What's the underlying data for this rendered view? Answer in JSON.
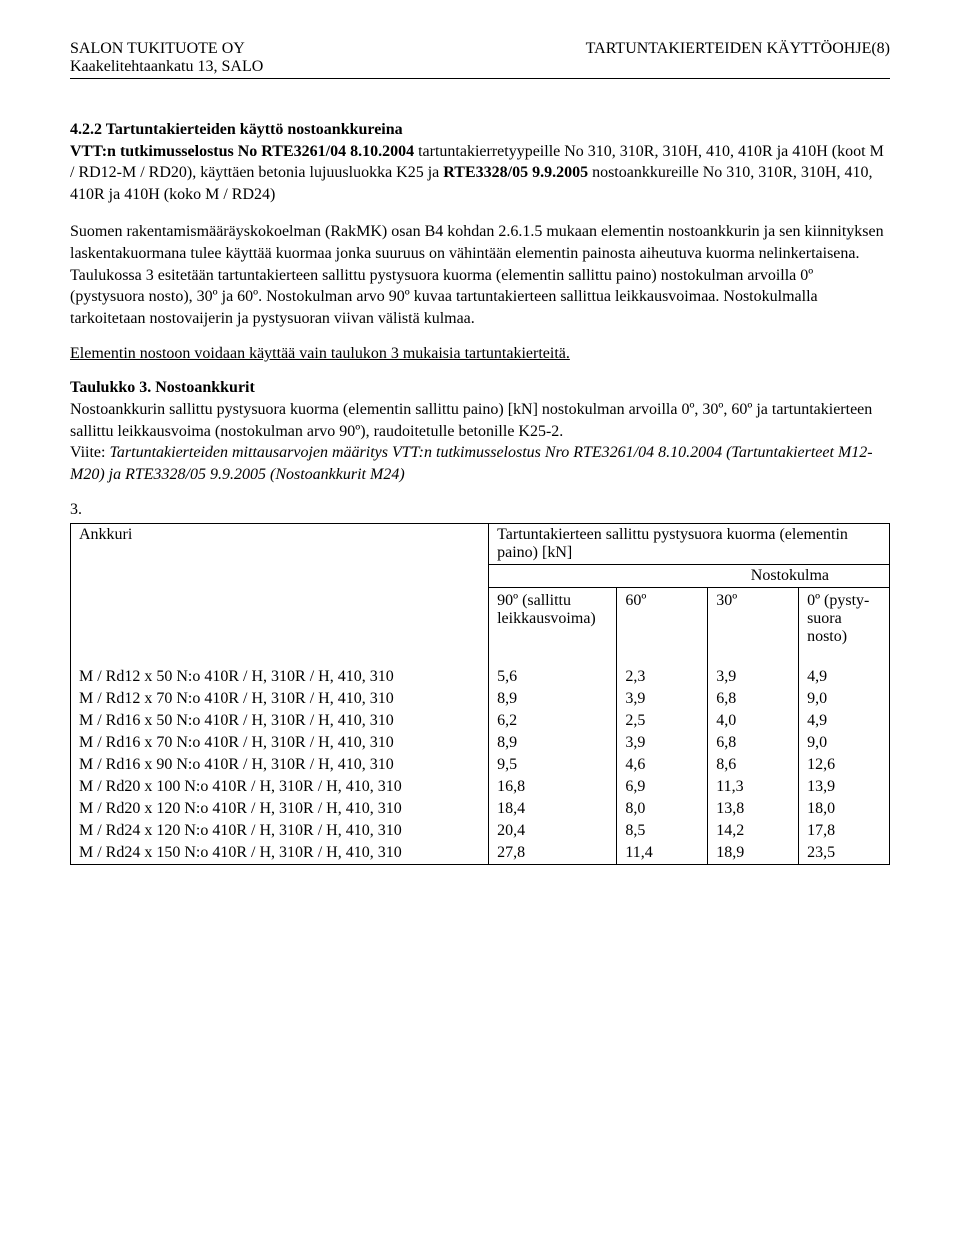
{
  "header": {
    "company": "SALON TUKITUOTE OY",
    "address": "Kaakelitehtaankatu 13,  SALO",
    "doc_title": "TARTUNTAKIERTEIDEN KÄYTTÖOHJE(8)"
  },
  "section": {
    "number_title": "4.2.2  Tartuntakierteiden käyttö nostoankkureina",
    "subtitle_prefix": "VTT:n tutkimusselostus No RTE3261/04 8.10.2004",
    "para1_a": " tartuntakierretyypeille No 310, 310R, 310H, 410, 410R ja 410H (koot M / RD12-M / RD20), käyttäen betonia lujuusluokka K25 ja ",
    "para1_rte": "RTE3328/05 9.9.2005",
    "para1_b": " nostoankkureille No 310, 310R, 310H, 410, 410R ja 410H (koko M / RD24)",
    "para2": "Suomen rakentamismääräyskokoelman (RakMK) osan B4 kohdan 2.6.1.5 mukaan elementin nostoankkurin ja sen kiinnityksen laskentakuormana tulee käyttää kuormaa jonka suuruus on vähintään elementin painosta aiheutuva kuorma nelinkertaisena. Taulukossa 3 esitetään tartuntakierteen sallittu pystysuora kuorma (elementin sallittu paino) nostokulman arvoilla 0º (pystysuora nosto), 30º ja 60º. Nostokulman arvo 90º kuvaa tartuntakierteen sallittua leikkausvoimaa. Nostokulmalla tarkoitetaan nostovaijerin ja pystysuoran viivan välistä kulmaa.",
    "underline": "Elementin nostoon voidaan käyttää vain taulukon 3 mukaisia tartuntakierteitä.",
    "tbl_title": "Taulukko 3. Nostoankkurit",
    "tbl_desc": "Nostoankkurin sallittu pystysuora kuorma (elementin sallittu paino) [kN] nostokulman arvoilla 0º, 30º, 60º ja tartuntakierteen sallittu leikkausvoima (nostokulman arvo 90º), raudoitetulle betonille K25-2.",
    "tbl_ref_label": "Viite: ",
    "tbl_ref_italic": "Tartuntakierteiden mittausarvojen määritys VTT:n tutkimusselostus Nro RTE3261/04 8.10.2004 (Tartuntakierteet M12-M20) ja RTE3328/05 9.9.2005 (Nostoankkurit M24)"
  },
  "table": {
    "number": "3.",
    "h_ankkuri": "Ankkuri",
    "h_group": "Tartuntakierteen sallittu pystysuora kuorma (elementin paino) [kN]",
    "h_nosto": "Nostokulma",
    "h_90": "90º (sallittu leikkausvoima)",
    "h_60": "60º",
    "h_30": "30º",
    "h_0": "0º (pysty-suora nosto)",
    "rows": [
      {
        "a": "M / Rd12 x 50 N:o 410R / H, 310R / H, 410, 310",
        "v90": "5,6",
        "v60": "2,3",
        "v30": "3,9",
        "v0": "4,9"
      },
      {
        "a": "M / Rd12 x 70 N:o 410R / H, 310R / H, 410, 310",
        "v90": "8,9",
        "v60": "3,9",
        "v30": "6,8",
        "v0": "9,0"
      },
      {
        "a": "M / Rd16 x 50 N:o 410R / H, 310R / H, 410, 310",
        "v90": "6,2",
        "v60": "2,5",
        "v30": "4,0",
        "v0": "4,9"
      },
      {
        "a": "M / Rd16 x 70 N:o 410R / H, 310R / H, 410, 310",
        "v90": "8,9",
        "v60": "3,9",
        "v30": "6,8",
        "v0": "9,0"
      },
      {
        "a": "M / Rd16 x 90 N:o 410R / H, 310R / H, 410, 310",
        "v90": "9,5",
        "v60": "4,6",
        "v30": "8,6",
        "v0": "12,6"
      },
      {
        "a": "M / Rd20 x 100 N:o 410R / H, 310R / H, 410, 310",
        "v90": "16,8",
        "v60": "6,9",
        "v30": "11,3",
        "v0": "13,9"
      },
      {
        "a": "M / Rd20 x 120 N:o 410R / H, 310R / H, 410, 310",
        "v90": "18,4",
        "v60": "8,0",
        "v30": "13,8",
        "v0": "18,0"
      },
      {
        "a": "M / Rd24 x 120 N:o 410R / H, 310R / H, 410, 310",
        "v90": "20,4",
        "v60": "8,5",
        "v30": "14,2",
        "v0": "17,8"
      },
      {
        "a": "M / Rd24 x 150 N:o 410R / H, 310R / H, 410, 310",
        "v90": "27,8",
        "v60": "11,4",
        "v30": "18,9",
        "v0": "23,5"
      }
    ]
  }
}
